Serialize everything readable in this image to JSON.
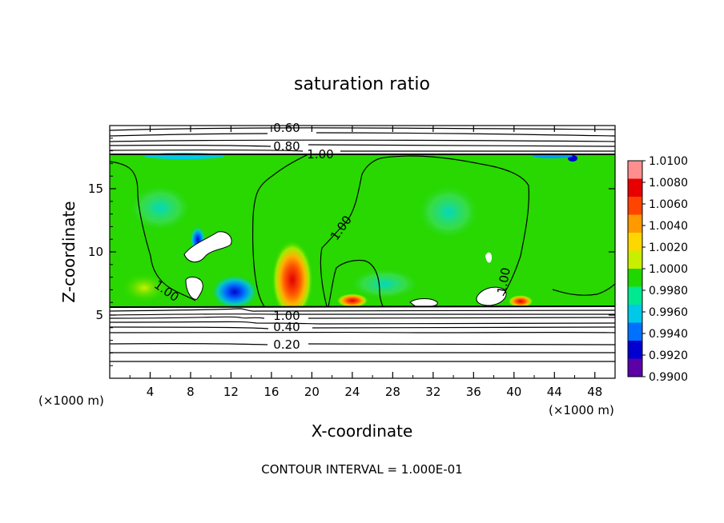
{
  "chart_data": {
    "type": "heatmap",
    "title": "saturation ratio",
    "xlabel": "X-coordinate",
    "ylabel": "Z-coordinate",
    "x_unit": "(×1000 m)",
    "z_unit": "(×1000 m)",
    "xlim": [
      0,
      50
    ],
    "ylim": [
      0,
      20
    ],
    "x_ticks": [
      "4",
      "8",
      "12",
      "16",
      "20",
      "24",
      "28",
      "32",
      "36",
      "40",
      "44",
      "48"
    ],
    "y_ticks": [
      "5",
      "10",
      "15"
    ],
    "colorbar": {
      "labels": [
        "1.0100",
        "1.0080",
        "1.0060",
        "1.0040",
        "1.0020",
        "1.0000",
        "0.9980",
        "0.9960",
        "0.9940",
        "0.9920",
        "0.9900"
      ],
      "colors": [
        "#ff8f8f",
        "#e80000",
        "#ff4400",
        "#ff9900",
        "#ffd700",
        "#c8ee00",
        "#20d800",
        "#00e890",
        "#00c8e8",
        "#0070ff",
        "#0000d0",
        "#5c00a8"
      ]
    },
    "contour_labels": [
      "0.60",
      "0.80",
      "1.00",
      "1.00",
      "1.00",
      "1.00",
      "1.00",
      "0.40",
      "0.20"
    ],
    "footer": "CONTOUR INTERVAL = 1.000E-01"
  }
}
